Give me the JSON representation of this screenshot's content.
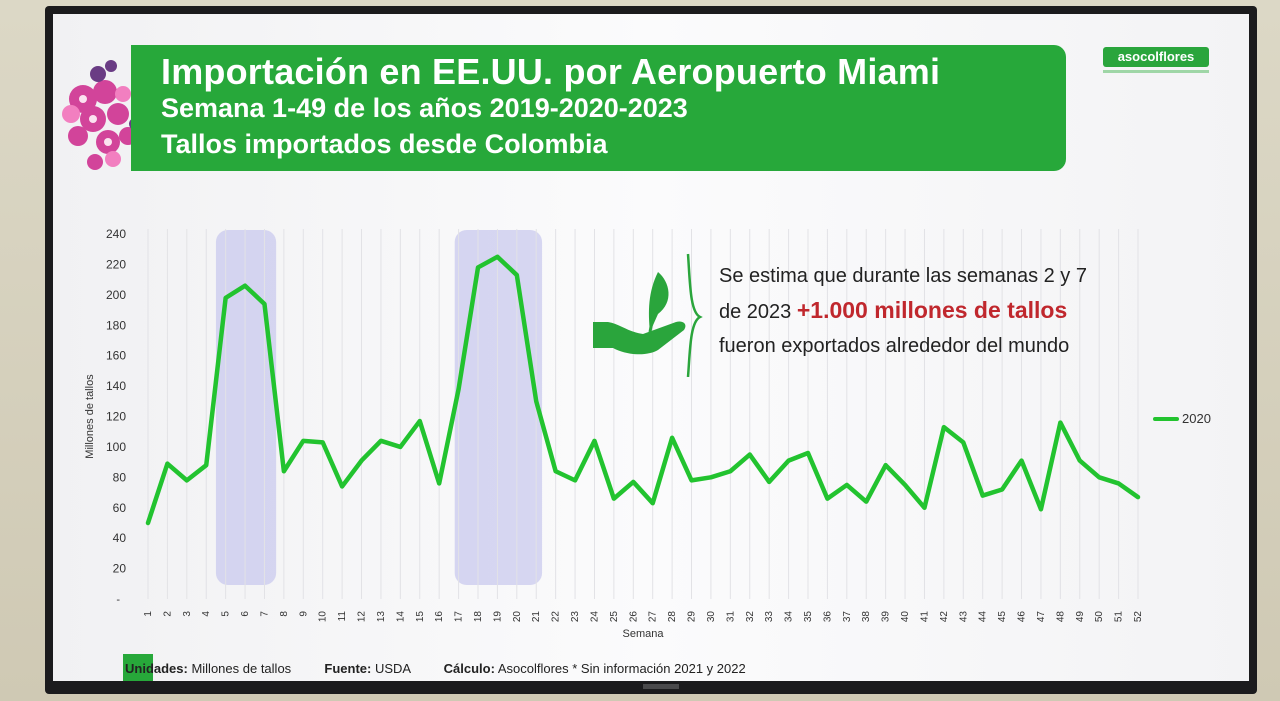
{
  "header": {
    "title": "Importación en EE.UU. por Aeropuerto Miami",
    "subtitle": "Semana 1-49 de los años 2019-2020-2023",
    "subtitle2": "Tallos importados desde Colombia"
  },
  "logo": {
    "text": "asocolflores"
  },
  "note": {
    "line1": "Se estima que durante las semanas 2 y 7",
    "line2_prefix": "de 2023 ",
    "line2_highlight": "+1.000 millones de tallos",
    "line3": "fueron exportados alrededor del mundo"
  },
  "colors": {
    "line": "#22c32f",
    "banner": "#27a83a",
    "highlight": "#c0272d",
    "band": "#c9c9ee"
  },
  "footer": {
    "units_label": "Unidades:",
    "units_value": " Millones de tallos",
    "source_label": "Fuente:",
    "source_value": " USDA",
    "calc_label": "Cálculo:",
    "calc_value": " Asocolflores * Sin información 2021 y 2022"
  },
  "chart_data": {
    "type": "line",
    "xlabel": "Semana",
    "ylabel": "Millones de tallos",
    "ylim": [
      0,
      240
    ],
    "yticks": [
      20,
      40,
      60,
      80,
      100,
      120,
      140,
      160,
      180,
      200,
      220,
      240
    ],
    "x": [
      "1",
      "2",
      "3",
      "4",
      "5",
      "6",
      "7",
      "8",
      "9",
      "10",
      "11",
      "12",
      "13",
      "14",
      "15",
      "16",
      "17",
      "18",
      "19",
      "20",
      "21",
      "22",
      "23",
      "24",
      "25",
      "26",
      "27",
      "28",
      "29",
      "30",
      "31",
      "32",
      "33",
      "34",
      "35",
      "36",
      "37",
      "38",
      "39",
      "40",
      "41",
      "42",
      "43",
      "44",
      "45",
      "46",
      "47",
      "48",
      "49",
      "50",
      "51",
      "52"
    ],
    "series": [
      {
        "name": "2020",
        "values": [
          50,
          89,
          78,
          88,
          198,
          206,
          194,
          84,
          104,
          103,
          74,
          91,
          104,
          100,
          117,
          76,
          138,
          218,
          225,
          213,
          130,
          84,
          78,
          104,
          66,
          77,
          63,
          106,
          78,
          80,
          84,
          95,
          77,
          91,
          96,
          66,
          75,
          64,
          88,
          75,
          60,
          113,
          103,
          68,
          72,
          91,
          59,
          116,
          91,
          80,
          76,
          67
        ]
      }
    ],
    "highlight_bands": [
      [
        4.5,
        7.6
      ],
      [
        16.8,
        21.3
      ]
    ],
    "legend_position": "right",
    "grid": true
  }
}
